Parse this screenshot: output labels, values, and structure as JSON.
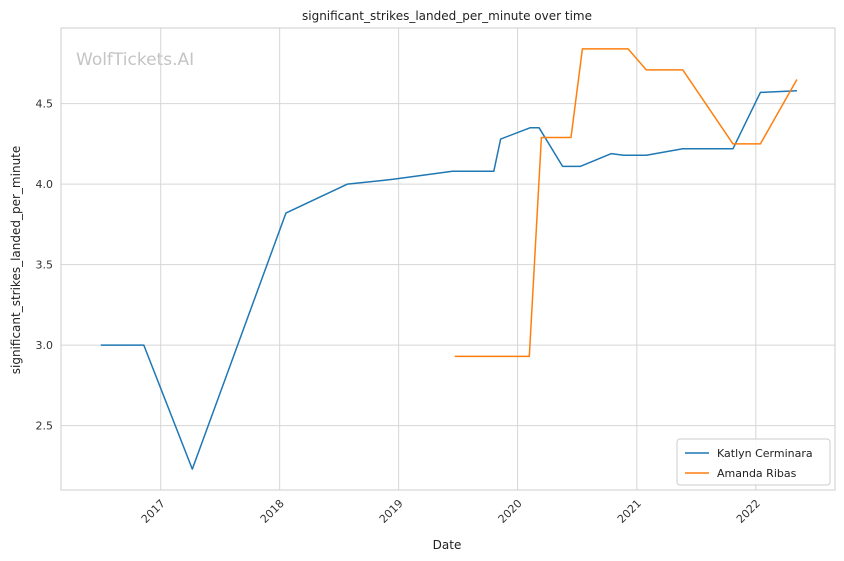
{
  "chart_data": {
    "type": "line",
    "title": "significant_strikes_landed_per_minute over time",
    "xlabel": "Date",
    "ylabel": "significant_strikes_landed_per_minute",
    "watermark": "WolfTickets.AI",
    "x_range": [
      "2016-03-01",
      "2022-09-01"
    ],
    "ylim": [
      2.1,
      4.97
    ],
    "x_ticks": [
      "2017",
      "2018",
      "2019",
      "2020",
      "2021",
      "2022"
    ],
    "y_ticks": [
      "2.5",
      "3.0",
      "3.5",
      "4.0",
      "4.5"
    ],
    "grid": true,
    "legend_position": "lower-right",
    "series": [
      {
        "name": "Katlyn Cerminara",
        "color": "#1f77b4",
        "points": [
          [
            "2016-07-01",
            3.0
          ],
          [
            "2016-11-10",
            3.0
          ],
          [
            "2017-04-08",
            2.23
          ],
          [
            "2018-01-20",
            3.82
          ],
          [
            "2018-07-28",
            4.0
          ],
          [
            "2018-12-15",
            4.03
          ],
          [
            "2019-06-15",
            4.08
          ],
          [
            "2019-10-20",
            4.08
          ],
          [
            "2019-11-10",
            4.28
          ],
          [
            "2020-02-08",
            4.35
          ],
          [
            "2020-03-07",
            4.35
          ],
          [
            "2020-05-18",
            4.11
          ],
          [
            "2020-07-11",
            4.11
          ],
          [
            "2020-10-15",
            4.19
          ],
          [
            "2020-11-21",
            4.18
          ],
          [
            "2021-01-30",
            4.18
          ],
          [
            "2021-05-22",
            4.22
          ],
          [
            "2021-10-23",
            4.22
          ],
          [
            "2022-01-15",
            4.57
          ],
          [
            "2022-05-07",
            4.58
          ]
        ]
      },
      {
        "name": "Amanda Ribas",
        "color": "#ff7f0e",
        "points": [
          [
            "2019-06-22",
            2.93
          ],
          [
            "2020-02-06",
            2.93
          ],
          [
            "2020-03-14",
            4.29
          ],
          [
            "2020-06-13",
            4.29
          ],
          [
            "2020-07-18",
            4.84
          ],
          [
            "2020-12-05",
            4.84
          ],
          [
            "2021-01-30",
            4.71
          ],
          [
            "2021-05-22",
            4.71
          ],
          [
            "2021-10-23",
            4.25
          ],
          [
            "2022-01-15",
            4.25
          ],
          [
            "2022-05-07",
            4.65
          ]
        ]
      }
    ]
  }
}
